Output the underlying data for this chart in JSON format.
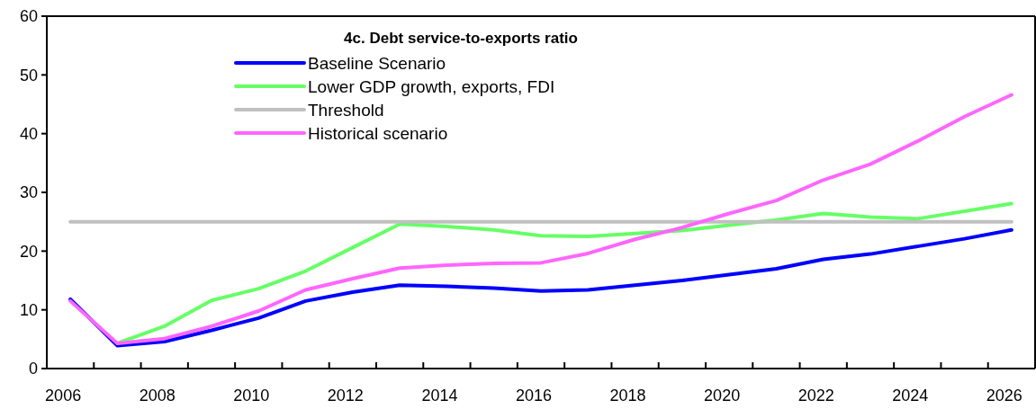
{
  "chart_data": {
    "type": "line",
    "title": "4c. Debt service-to-exports ratio",
    "categories": [
      "2006",
      null,
      "2008",
      null,
      "2010",
      null,
      "2012",
      null,
      "2014",
      null,
      "2016",
      null,
      "2018",
      null,
      "2020",
      null,
      "2022",
      null,
      "2024",
      null,
      "2026"
    ],
    "series": [
      {
        "name": "Baseline Scenario",
        "color": "#0000ff",
        "values": [
          11.8,
          3.9,
          4.6,
          6.5,
          8.6,
          11.5,
          13.0,
          14.2,
          14.0,
          13.7,
          13.2,
          13.4,
          14.2,
          15.0,
          16.0,
          17.0,
          18.6,
          19.5,
          20.8,
          22.1,
          23.6
        ]
      },
      {
        "name": "Lower GDP growth, exports, FDI",
        "color": "#66ff66",
        "values": [
          null,
          4.3,
          7.2,
          11.6,
          13.6,
          16.6,
          20.6,
          24.6,
          24.2,
          23.6,
          22.6,
          22.5,
          23.0,
          23.5,
          24.4,
          25.3,
          26.4,
          25.8,
          25.5,
          26.8,
          28.1
        ]
      },
      {
        "name": "Threshold",
        "color": "#c0c0c0",
        "values": [
          25,
          25,
          25,
          25,
          25,
          25,
          25,
          25,
          25,
          25,
          25,
          25,
          25,
          25,
          25,
          25,
          25,
          25,
          25,
          25,
          25
        ]
      },
      {
        "name": "Historical scenario",
        "color": "#ff66ff",
        "values": [
          11.5,
          4.3,
          5.1,
          7.2,
          9.8,
          13.4,
          15.3,
          17.1,
          17.6,
          17.9,
          18.0,
          19.6,
          22.0,
          24.0,
          26.4,
          28.6,
          32.1,
          34.8,
          38.7,
          42.9,
          46.6
        ]
      }
    ],
    "ylim": [
      0,
      60
    ],
    "yticks": [
      0,
      10,
      20,
      30,
      40,
      50,
      60
    ],
    "legend": "top left",
    "marker": "none",
    "line_style": "solid"
  }
}
